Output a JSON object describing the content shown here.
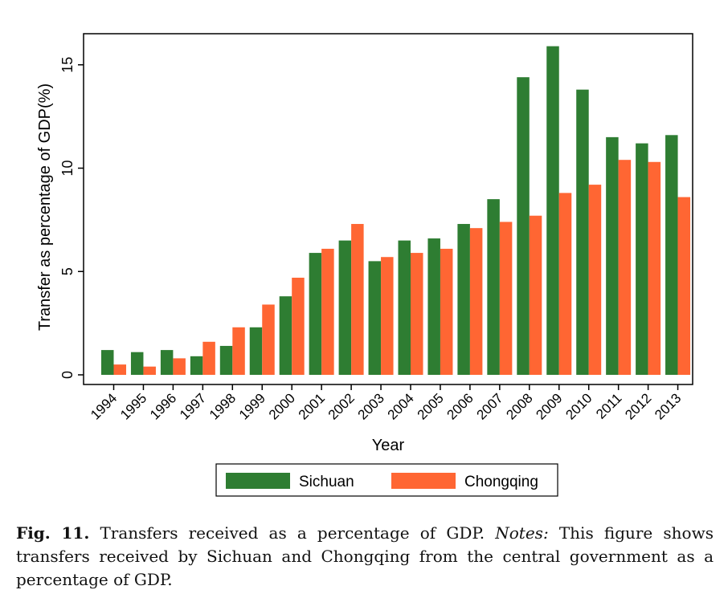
{
  "chart_data": {
    "type": "bar",
    "title": "",
    "xlabel": "Year",
    "ylabel": "Transfer as percentage of GDP(%)",
    "ylim": [
      0,
      17
    ],
    "yticks": [
      0,
      5,
      10,
      15
    ],
    "grid": false,
    "legend_position": "bottom",
    "categories": [
      "1994",
      "1995",
      "1996",
      "1997",
      "1998",
      "1999",
      "2000",
      "2001",
      "2002",
      "2003",
      "2004",
      "2005",
      "2006",
      "2007",
      "2008",
      "2009",
      "2010",
      "2011",
      "2012",
      "2013"
    ],
    "series": [
      {
        "name": "Sichuan",
        "color": "#2e7d32",
        "values": [
          1.2,
          1.1,
          1.2,
          0.9,
          1.4,
          2.3,
          3.8,
          5.9,
          6.5,
          5.5,
          6.5,
          6.6,
          7.3,
          8.5,
          14.4,
          15.9,
          13.8,
          11.5,
          11.2,
          11.6
        ]
      },
      {
        "name": "Chongqing",
        "color": "#ff6633",
        "values": [
          0.5,
          0.4,
          0.8,
          1.6,
          2.3,
          3.4,
          4.7,
          6.1,
          7.3,
          5.7,
          5.9,
          6.1,
          7.1,
          7.4,
          7.7,
          8.8,
          9.2,
          10.4,
          10.3,
          8.6
        ]
      }
    ]
  },
  "caption": {
    "label": "Fig. 11.",
    "text": "Transfers received as a percentage of GDP.",
    "notes_label": "Notes:",
    "notes_text": "This figure shows transfers received by Sichuan and Chongqing from the central government as a percentage of GDP."
  }
}
